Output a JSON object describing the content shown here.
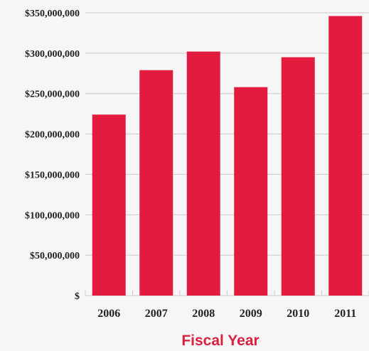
{
  "chart_data": {
    "type": "bar",
    "categories": [
      "2006",
      "2007",
      "2008",
      "2009",
      "2010",
      "2011"
    ],
    "values": [
      224000000,
      279000000,
      302000000,
      258000000,
      295000000,
      346000000
    ],
    "ylim": [
      0,
      350000000
    ],
    "yticks": [
      0,
      50000000,
      100000000,
      150000000,
      200000000,
      250000000,
      300000000,
      350000000
    ],
    "ytick_labels": [
      "$",
      "$50,000,000",
      "$100,000,000",
      "$150,000,000",
      "$200,000,000",
      "$250,000,000",
      "$300,000,000",
      "$350,000,000"
    ],
    "xlabel": "Fiscal Year",
    "ylabel": "",
    "title": "",
    "grid": true,
    "legend": "none"
  },
  "colors": {
    "bar": "#e31b3e",
    "xlabel": "#d9203f",
    "grid": "#c9c9c9",
    "background": "#f6f6f6",
    "text": "#222222"
  }
}
